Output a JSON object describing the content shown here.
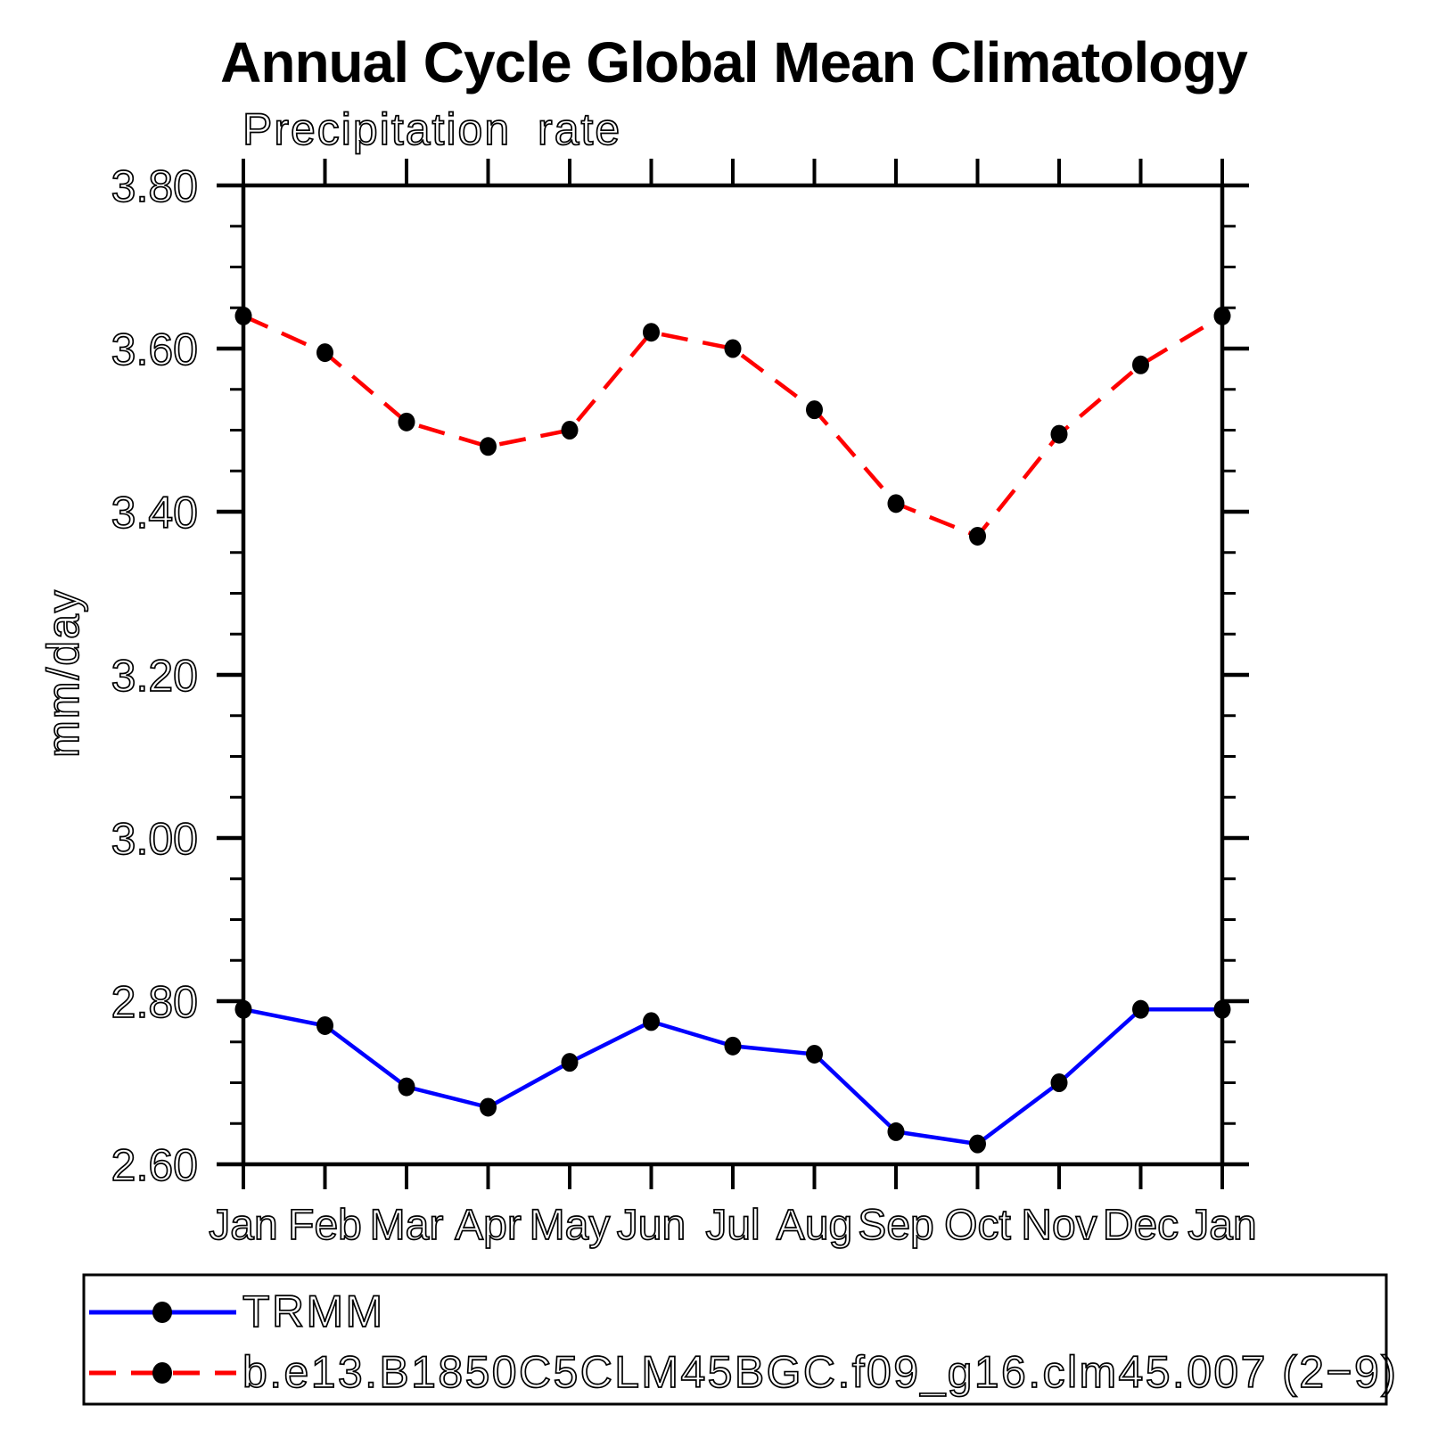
{
  "chart_data": {
    "type": "line",
    "title": "Annual Cycle Global Mean Climatology",
    "subtitle": "Precipitation rate",
    "ylabel": "mm/day",
    "xlabel": "",
    "categories": [
      "Jan",
      "Feb",
      "Mar",
      "Apr",
      "May",
      "Jun",
      "Jul",
      "Aug",
      "Sep",
      "Oct",
      "Nov",
      "Dec",
      "Jan"
    ],
    "ylim": [
      2.6,
      3.8
    ],
    "ytick_labels": [
      "3.80",
      "3.60",
      "3.40",
      "3.20",
      "3.00",
      "2.80",
      "2.60"
    ],
    "ytick_minor_step": 0.05,
    "ytick_major_step": 0.2,
    "grid": false,
    "legend_position": "bottom-left-box",
    "series": [
      {
        "name": "TRMM",
        "color": "#0000ff",
        "line_style": "solid",
        "marker": "filled-circle",
        "marker_color": "#000000",
        "values": [
          2.79,
          2.77,
          2.695,
          2.67,
          2.725,
          2.775,
          2.745,
          2.735,
          2.64,
          2.625,
          2.7,
          2.79,
          2.79
        ]
      },
      {
        "name": "b.e13.B1850C5CLM45BGC.f09_g16.clm45.007 (2−9)",
        "color": "#ff0000",
        "line_style": "dashed",
        "marker": "filled-circle",
        "marker_color": "#000000",
        "values": [
          3.64,
          3.595,
          3.51,
          3.48,
          3.5,
          3.62,
          3.6,
          3.525,
          3.41,
          3.37,
          3.495,
          3.58,
          3.64
        ]
      }
    ]
  },
  "colors": {
    "background": "#ffffff",
    "axis": "#000000",
    "text": "#000000",
    "trmm_line": "#0000ff",
    "model_line": "#ff0000",
    "marker": "#000000"
  }
}
